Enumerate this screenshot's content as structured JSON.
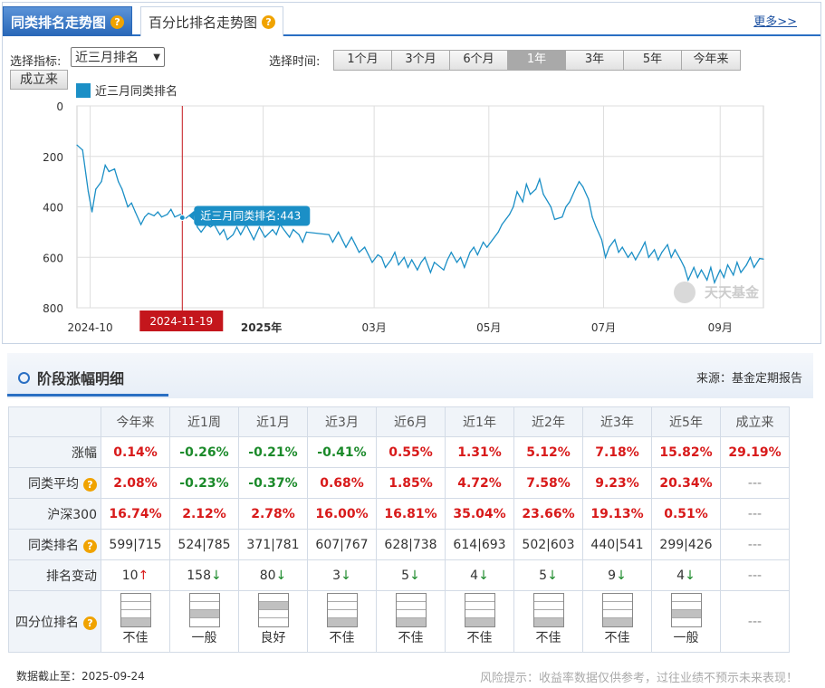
{
  "tabs": [
    {
      "label": "同类排名走势图",
      "active": true
    },
    {
      "label": "百分比排名走势图",
      "active": false
    }
  ],
  "more_label": "更多>>",
  "indicator": {
    "label": "选择指标:",
    "value": "近三月排名",
    "since_button": "成立来"
  },
  "time": {
    "label": "选择时间:",
    "options": [
      "1个月",
      "3个月",
      "6个月",
      "1年",
      "3年",
      "5年",
      "今年来"
    ],
    "selected": "1年"
  },
  "chart_data": {
    "type": "line",
    "series": [
      {
        "name": "近三月同类排名"
      }
    ],
    "y_axis": {
      "min": 0,
      "max": 800,
      "inverted": true,
      "ticks": [
        "0",
        "200",
        "400",
        "600",
        "800"
      ]
    },
    "x_ticks": [
      "2024-10",
      "2025年",
      "03月",
      "05月",
      "07月",
      "09月"
    ],
    "x_range": [
      "2024-09-24",
      "2025-09-24"
    ],
    "tooltip": {
      "text": "近三月同类排名:443",
      "date": "2024-11-19",
      "value": 443
    },
    "watermark": "天天基金",
    "points": [
      [
        "2024-09-24",
        155
      ],
      [
        "2024-09-27",
        175
      ],
      [
        "2024-09-30",
        340
      ],
      [
        "2024-10-02",
        420
      ],
      [
        "2024-10-04",
        330
      ],
      [
        "2024-10-07",
        300
      ],
      [
        "2024-10-09",
        235
      ],
      [
        "2024-10-11",
        260
      ],
      [
        "2024-10-14",
        250
      ],
      [
        "2024-10-16",
        300
      ],
      [
        "2024-10-18",
        330
      ],
      [
        "2024-10-21",
        400
      ],
      [
        "2024-10-23",
        385
      ],
      [
        "2024-10-25",
        420
      ],
      [
        "2024-10-28",
        470
      ],
      [
        "2024-10-30",
        440
      ],
      [
        "2024-11-01",
        425
      ],
      [
        "2024-11-04",
        435
      ],
      [
        "2024-11-06",
        420
      ],
      [
        "2024-11-08",
        440
      ],
      [
        "2024-11-11",
        430
      ],
      [
        "2024-11-13",
        410
      ],
      [
        "2024-11-15",
        440
      ],
      [
        "2024-11-18",
        430
      ],
      [
        "2024-11-19",
        443
      ],
      [
        "2024-11-21",
        445
      ],
      [
        "2024-11-25",
        420
      ],
      [
        "2024-11-27",
        480
      ],
      [
        "2024-11-29",
        500
      ],
      [
        "2024-12-02",
        470
      ],
      [
        "2024-12-04",
        480
      ],
      [
        "2024-12-06",
        470
      ],
      [
        "2024-12-09",
        510
      ],
      [
        "2024-12-11",
        490
      ],
      [
        "2024-12-13",
        530
      ],
      [
        "2024-12-16",
        510
      ],
      [
        "2024-12-18",
        480
      ],
      [
        "2024-12-20",
        510
      ],
      [
        "2024-12-23",
        470
      ],
      [
        "2024-12-25",
        500
      ],
      [
        "2024-12-27",
        530
      ],
      [
        "2024-12-30",
        480
      ],
      [
        "2025-01-02",
        520
      ],
      [
        "2025-01-06",
        490
      ],
      [
        "2025-01-08",
        510
      ],
      [
        "2025-01-10",
        470
      ],
      [
        "2025-01-13",
        500
      ],
      [
        "2025-01-15",
        520
      ],
      [
        "2025-01-17",
        490
      ],
      [
        "2025-01-20",
        510
      ],
      [
        "2025-01-22",
        540
      ],
      [
        "2025-01-24",
        500
      ],
      [
        "2025-02-05",
        510
      ],
      [
        "2025-02-07",
        540
      ],
      [
        "2025-02-10",
        500
      ],
      [
        "2025-02-12",
        530
      ],
      [
        "2025-02-14",
        560
      ],
      [
        "2025-02-17",
        520
      ],
      [
        "2025-02-19",
        550
      ],
      [
        "2025-02-21",
        580
      ],
      [
        "2025-02-24",
        560
      ],
      [
        "2025-02-26",
        590
      ],
      [
        "2025-02-28",
        620
      ],
      [
        "2025-03-03",
        590
      ],
      [
        "2025-03-05",
        600
      ],
      [
        "2025-03-07",
        640
      ],
      [
        "2025-03-10",
        610
      ],
      [
        "2025-03-12",
        580
      ],
      [
        "2025-03-14",
        630
      ],
      [
        "2025-03-17",
        600
      ],
      [
        "2025-03-19",
        640
      ],
      [
        "2025-03-21",
        610
      ],
      [
        "2025-03-24",
        650
      ],
      [
        "2025-03-26",
        620
      ],
      [
        "2025-03-28",
        600
      ],
      [
        "2025-03-31",
        660
      ],
      [
        "2025-04-02",
        620
      ],
      [
        "2025-04-07",
        650
      ],
      [
        "2025-04-09",
        610
      ],
      [
        "2025-04-11",
        580
      ],
      [
        "2025-04-14",
        620
      ],
      [
        "2025-04-16",
        600
      ],
      [
        "2025-04-18",
        640
      ],
      [
        "2025-04-21",
        580
      ],
      [
        "2025-04-23",
        560
      ],
      [
        "2025-04-25",
        590
      ],
      [
        "2025-04-28",
        540
      ],
      [
        "2025-04-30",
        560
      ],
      [
        "2025-05-06",
        500
      ],
      [
        "2025-05-08",
        470
      ],
      [
        "2025-05-12",
        430
      ],
      [
        "2025-05-14",
        400
      ],
      [
        "2025-05-16",
        340
      ],
      [
        "2025-05-19",
        380
      ],
      [
        "2025-05-21",
        310
      ],
      [
        "2025-05-23",
        350
      ],
      [
        "2025-05-26",
        330
      ],
      [
        "2025-05-28",
        290
      ],
      [
        "2025-05-30",
        350
      ],
      [
        "2025-06-03",
        400
      ],
      [
        "2025-06-05",
        450
      ],
      [
        "2025-06-09",
        440
      ],
      [
        "2025-06-11",
        400
      ],
      [
        "2025-06-13",
        380
      ],
      [
        "2025-06-16",
        330
      ],
      [
        "2025-06-18",
        300
      ],
      [
        "2025-06-20",
        320
      ],
      [
        "2025-06-23",
        370
      ],
      [
        "2025-06-25",
        440
      ],
      [
        "2025-06-27",
        480
      ],
      [
        "2025-06-30",
        530
      ],
      [
        "2025-07-02",
        600
      ],
      [
        "2025-07-04",
        560
      ],
      [
        "2025-07-07",
        530
      ],
      [
        "2025-07-09",
        580
      ],
      [
        "2025-07-11",
        560
      ],
      [
        "2025-07-14",
        600
      ],
      [
        "2025-07-16",
        580
      ],
      [
        "2025-07-18",
        610
      ],
      [
        "2025-07-21",
        570
      ],
      [
        "2025-07-23",
        540
      ],
      [
        "2025-07-25",
        600
      ],
      [
        "2025-07-28",
        570
      ],
      [
        "2025-07-30",
        610
      ],
      [
        "2025-08-01",
        580
      ],
      [
        "2025-08-04",
        550
      ],
      [
        "2025-08-06",
        600
      ],
      [
        "2025-08-08",
        570
      ],
      [
        "2025-08-11",
        610
      ],
      [
        "2025-08-13",
        640
      ],
      [
        "2025-08-15",
        690
      ],
      [
        "2025-08-18",
        640
      ],
      [
        "2025-08-20",
        680
      ],
      [
        "2025-08-22",
        650
      ],
      [
        "2025-08-25",
        690
      ],
      [
        "2025-08-27",
        640
      ],
      [
        "2025-08-29",
        700
      ],
      [
        "2025-09-01",
        650
      ],
      [
        "2025-09-03",
        680
      ],
      [
        "2025-09-05",
        630
      ],
      [
        "2025-09-08",
        670
      ],
      [
        "2025-09-10",
        620
      ],
      [
        "2025-09-12",
        660
      ],
      [
        "2025-09-15",
        630
      ],
      [
        "2025-09-17",
        600
      ],
      [
        "2025-09-19",
        640
      ],
      [
        "2025-09-22",
        605
      ],
      [
        "2025-09-24",
        607
      ]
    ]
  },
  "section": {
    "title": "阶段涨幅明细",
    "source": "来源：基金定期报告"
  },
  "table": {
    "columns": [
      "今年来",
      "近1周",
      "近1月",
      "近3月",
      "近6月",
      "近1年",
      "近2年",
      "近3年",
      "近5年",
      "成立来"
    ],
    "rows": [
      {
        "label": "涨幅",
        "help": false,
        "cells": [
          {
            "v": "0.14%",
            "c": "red"
          },
          {
            "v": "-0.26%",
            "c": "green"
          },
          {
            "v": "-0.21%",
            "c": "green"
          },
          {
            "v": "-0.41%",
            "c": "green"
          },
          {
            "v": "0.55%",
            "c": "red"
          },
          {
            "v": "1.31%",
            "c": "red"
          },
          {
            "v": "5.12%",
            "c": "red"
          },
          {
            "v": "7.18%",
            "c": "red"
          },
          {
            "v": "15.82%",
            "c": "red"
          },
          {
            "v": "29.19%",
            "c": "red"
          }
        ]
      },
      {
        "label": "同类平均",
        "help": true,
        "cells": [
          {
            "v": "2.08%",
            "c": "red"
          },
          {
            "v": "-0.23%",
            "c": "green"
          },
          {
            "v": "-0.37%",
            "c": "green"
          },
          {
            "v": "0.68%",
            "c": "red"
          },
          {
            "v": "1.85%",
            "c": "red"
          },
          {
            "v": "4.72%",
            "c": "red"
          },
          {
            "v": "7.58%",
            "c": "red"
          },
          {
            "v": "9.23%",
            "c": "red"
          },
          {
            "v": "20.34%",
            "c": "red"
          },
          {
            "v": "---",
            "c": "dash"
          }
        ]
      },
      {
        "label": "沪深300",
        "help": false,
        "cells": [
          {
            "v": "16.74%",
            "c": "red"
          },
          {
            "v": "2.12%",
            "c": "red"
          },
          {
            "v": "2.78%",
            "c": "red"
          },
          {
            "v": "16.00%",
            "c": "red"
          },
          {
            "v": "16.81%",
            "c": "red"
          },
          {
            "v": "35.04%",
            "c": "red"
          },
          {
            "v": "23.66%",
            "c": "red"
          },
          {
            "v": "19.13%",
            "c": "red"
          },
          {
            "v": "0.51%",
            "c": "red"
          },
          {
            "v": "---",
            "c": "dash"
          }
        ]
      },
      {
        "label": "同类排名",
        "help": true,
        "cells": [
          {
            "v": "599|715",
            "c": "plain"
          },
          {
            "v": "524|785",
            "c": "plain"
          },
          {
            "v": "371|781",
            "c": "plain"
          },
          {
            "v": "607|767",
            "c": "plain"
          },
          {
            "v": "628|738",
            "c": "plain"
          },
          {
            "v": "614|693",
            "c": "plain"
          },
          {
            "v": "502|603",
            "c": "plain"
          },
          {
            "v": "440|541",
            "c": "plain"
          },
          {
            "v": "299|426",
            "c": "plain"
          },
          {
            "v": "---",
            "c": "dash"
          }
        ]
      }
    ],
    "rank_change": {
      "label": "排名变动",
      "cells": [
        {
          "v": "10",
          "dir": "up"
        },
        {
          "v": "158",
          "dir": "down"
        },
        {
          "v": "80",
          "dir": "down"
        },
        {
          "v": "3",
          "dir": "down"
        },
        {
          "v": "5",
          "dir": "down"
        },
        {
          "v": "4",
          "dir": "down"
        },
        {
          "v": "5",
          "dir": "down"
        },
        {
          "v": "9",
          "dir": "down"
        },
        {
          "v": "4",
          "dir": "down"
        },
        {
          "v": "---",
          "dir": "none"
        }
      ]
    },
    "quartile": {
      "label": "四分位排名",
      "cells": [
        {
          "v": "不佳",
          "q": 4
        },
        {
          "v": "一般",
          "q": 3
        },
        {
          "v": "良好",
          "q": 2
        },
        {
          "v": "不佳",
          "q": 4
        },
        {
          "v": "不佳",
          "q": 4
        },
        {
          "v": "不佳",
          "q": 4
        },
        {
          "v": "不佳",
          "q": 4
        },
        {
          "v": "不佳",
          "q": 4
        },
        {
          "v": "一般",
          "q": 3
        },
        {
          "v": "---",
          "q": 0
        }
      ]
    }
  },
  "footer": {
    "date_label": "数据截止至：2025-09-24",
    "risk": "风险提示：收益率数据仅供参考，过往业绩不预示未来表现！"
  },
  "colors": {
    "line": "#1b8fc6",
    "marker": "#c4161c",
    "tooltip": "#1b8fc6",
    "tab_active": "#2867b8",
    "up": "#d81a1a",
    "down": "#1b8a2a"
  }
}
